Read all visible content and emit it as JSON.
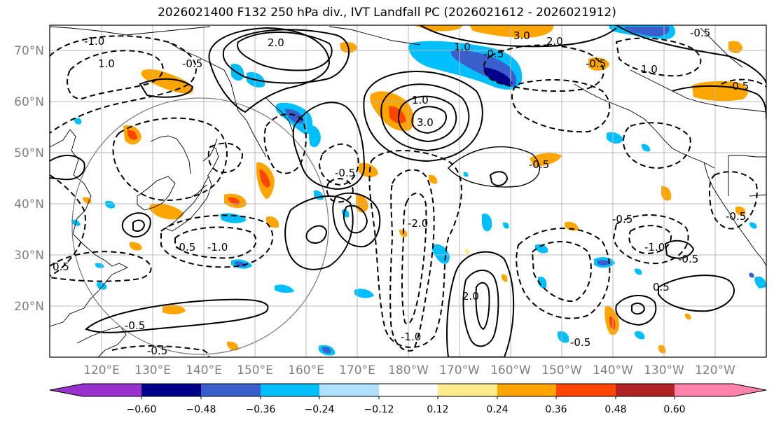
{
  "title": "2026021400 F132 250 hPa div., IVT Landfall PC (2026021612 - 2026021912)",
  "lat_ticks": [
    "70°N",
    "60°N",
    "50°N",
    "40°N",
    "30°N",
    "20°N"
  ],
  "lon_ticks": [
    "120°E",
    "130°E",
    "140°E",
    "150°E",
    "160°E",
    "170°E",
    "180°W",
    "170°W",
    "160°W",
    "150°W",
    "140°W",
    "130°W",
    "120°W"
  ],
  "colorbar": {
    "colors": [
      "#9932CC",
      "#00008B",
      "#3A5FCD",
      "#00BFFF",
      "#B0E2FF",
      "#FFFFFF",
      "#FFEC8B",
      "#FFA500",
      "#FF4500",
      "#B22222",
      "#FF82AB"
    ],
    "tick_labels": [
      "−0.60",
      "−0.48",
      "−0.36",
      "−0.24",
      "−0.12",
      "0.12",
      "0.24",
      "0.36",
      "0.48",
      "0.60"
    ]
  },
  "contour_labels": [
    {
      "text": "3.0"
    },
    {
      "text": "2.0"
    },
    {
      "text": "-0.5"
    },
    {
      "text": "1.0"
    },
    {
      "text": "-0.5"
    },
    {
      "text": "2.0"
    },
    {
      "text": "-1.0"
    },
    {
      "text": "-0.5"
    },
    {
      "text": "-0.5"
    },
    {
      "text": "1.0"
    },
    {
      "text": "3.0"
    },
    {
      "text": "-0.5"
    },
    {
      "text": "-2.0"
    },
    {
      "text": "1.0"
    },
    {
      "text": "-0.5"
    },
    {
      "text": "1.0"
    },
    {
      "text": "-0.5"
    },
    {
      "text": "-1.0"
    },
    {
      "text": "-0.5"
    },
    {
      "text": "0.5"
    },
    {
      "text": "-0.5"
    },
    {
      "text": "-1.0"
    },
    {
      "text": "-0.5"
    },
    {
      "text": "0.5"
    },
    {
      "text": "-0.5"
    },
    {
      "text": "-1.0"
    },
    {
      "text": "2.0"
    },
    {
      "text": "-0.5"
    },
    {
      "text": "-0.5"
    },
    {
      "text": "-0.5"
    }
  ]
}
